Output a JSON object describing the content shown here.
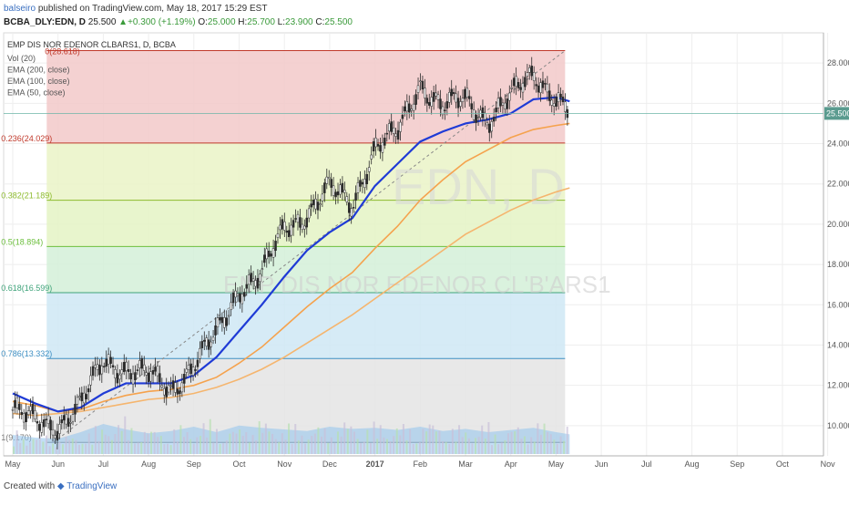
{
  "header": {
    "author": "balseiro",
    "published_text": "published on TradingView.com, May 18, 2017 15:29 EST",
    "symbol": "BCBA_DLY:EDN, D",
    "price": "25.500",
    "change": "+0.300 (+1.19%)",
    "open_label": "O:",
    "open": "25.000",
    "high_label": "H:",
    "high": "25.700",
    "low_label": "L:",
    "low": "23.900",
    "close_label": "C:",
    "close": "25.500"
  },
  "legend": {
    "title": "EMP DIS NOR EDENOR CLBARS1, D, BCBA",
    "items": [
      "Vol (20)",
      "EMA (200, close)",
      "EMA (100, close)",
      "EMA (50, close)"
    ]
  },
  "watermark": {
    "ticker": "EDN, D",
    "name": "EMP DIS NOR EDENOR CL'B'ARS1"
  },
  "footer": {
    "created_with": "Created with",
    "brand": "TradingView"
  },
  "colors": {
    "ema50": "#1f3bd6",
    "ema100": "#f5a24d",
    "ema200": "#f5b56e",
    "volume_area": "#8fc3ec",
    "up_bar": "#2b2b2b",
    "down_bar": "#2b2b2b"
  },
  "chart_data": {
    "type": "candlestick",
    "price_scale": {
      "ylim": [
        8.5,
        29.5
      ],
      "ticks": [
        10,
        12,
        14,
        16,
        18,
        20,
        22,
        24,
        26,
        28
      ],
      "tick_labels": [
        "10.000",
        "12.000",
        "14.000",
        "16.000",
        "18.000",
        "20.000",
        "22.000",
        "24.000",
        "26.000",
        "28.000"
      ],
      "current_price_label": "25.500",
      "current_price": 25.5
    },
    "time_scale": {
      "labels": [
        "May",
        "Jun",
        "Jul",
        "Aug",
        "Sep",
        "Oct",
        "Nov",
        "Dec",
        "2017",
        "Feb",
        "Mar",
        "Apr",
        "May",
        "Jun",
        "Jul",
        "Aug",
        "Sep",
        "Oct",
        "Nov"
      ],
      "month_index": [
        0,
        1,
        2,
        3,
        4,
        5,
        6,
        7,
        8,
        9,
        10,
        11,
        12,
        13,
        14,
        15,
        16,
        17,
        18
      ]
    },
    "fibonacci": {
      "levels": [
        {
          "ratio": "0.236",
          "value": 24.029,
          "label": "0.236(24.029)"
        },
        {
          "ratio": "0.382",
          "value": 21.189,
          "label": "0.382(21.189)"
        },
        {
          "ratio": "0.5",
          "value": 18.894,
          "label": "0.5(18.894)"
        },
        {
          "ratio": "0.618",
          "value": 16.599,
          "label": "0.618(16.599)"
        },
        {
          "ratio": "0.786",
          "value": 13.332,
          "label": "0.786(13.332)"
        },
        {
          "ratio": "1",
          "value": 9.17,
          "label": "1(9.170)"
        }
      ],
      "top": {
        "ratio": "0",
        "value": 28.618,
        "label": "0(28.618)"
      }
    },
    "price_path_months": [
      0,
      0.5,
      1,
      1.5,
      2,
      2.5,
      3,
      3.5,
      4,
      4.5,
      5,
      5.5,
      6,
      6.5,
      7,
      7.5,
      8,
      8.5,
      9,
      9.5,
      10,
      10.5,
      11,
      11.5,
      12,
      12.3
    ],
    "price_path_values": [
      10.8,
      10.2,
      10.0,
      11.0,
      13.2,
      12.8,
      12.5,
      11.8,
      13.0,
      14.5,
      16.8,
      17.5,
      19.8,
      20.5,
      21.8,
      21.0,
      23.8,
      24.5,
      27.0,
      25.8,
      26.2,
      25.2,
      26.3,
      27.5,
      26.3,
      25.5
    ],
    "ema50_values": [
      11.6,
      11.1,
      10.7,
      10.9,
      11.6,
      12.1,
      12.1,
      12.1,
      12.5,
      13.4,
      14.7,
      16.0,
      17.4,
      18.7,
      19.6,
      20.3,
      21.9,
      23.0,
      24.1,
      24.6,
      25.0,
      25.2,
      25.5,
      26.2,
      26.3,
      26.1
    ],
    "ema100_values": [
      11.2,
      11.0,
      10.7,
      10.8,
      11.2,
      11.5,
      11.7,
      11.8,
      12.0,
      12.4,
      13.1,
      13.9,
      14.9,
      15.9,
      16.8,
      17.6,
      18.8,
      19.9,
      21.2,
      22.2,
      23.1,
      23.7,
      24.3,
      24.7,
      24.9,
      25.0
    ],
    "ema200_values": [
      10.6,
      10.5,
      10.6,
      10.7,
      10.9,
      11.1,
      11.3,
      11.4,
      11.6,
      11.9,
      12.3,
      12.8,
      13.4,
      14.1,
      14.8,
      15.5,
      16.3,
      17.1,
      17.9,
      18.7,
      19.5,
      20.1,
      20.7,
      21.2,
      21.6,
      21.8
    ],
    "volume_area_levels": [
      0.35,
      0.3,
      0.28,
      0.4,
      0.55,
      0.45,
      0.38,
      0.42,
      0.5,
      0.4,
      0.52,
      0.48,
      0.45,
      0.42,
      0.5,
      0.46,
      0.48,
      0.44,
      0.5,
      0.42,
      0.46,
      0.4,
      0.44,
      0.48,
      0.4,
      0.36
    ]
  }
}
